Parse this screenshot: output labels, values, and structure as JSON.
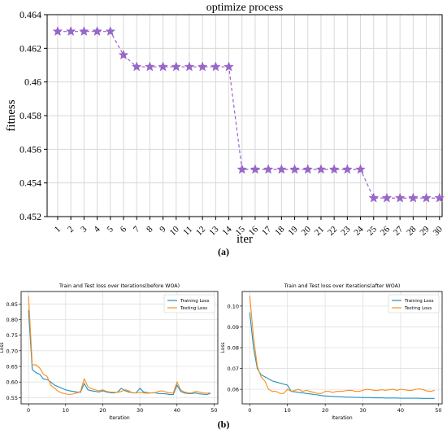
{
  "panel_labels": {
    "a": "(a)",
    "b": "(b)"
  },
  "chart_data": [
    {
      "type": "line",
      "title": "optimize process",
      "xlabel": "iter",
      "ylabel": "fitness",
      "x": [
        1,
        2,
        3,
        4,
        5,
        6,
        7,
        8,
        9,
        10,
        11,
        12,
        13,
        14,
        15,
        16,
        17,
        18,
        19,
        20,
        21,
        22,
        23,
        24,
        25,
        26,
        27,
        28,
        29,
        30
      ],
      "series": [
        {
          "values": [
            0.463,
            0.463,
            0.463,
            0.463,
            0.463,
            0.4616,
            0.4609,
            0.4609,
            0.4609,
            0.4609,
            0.4609,
            0.4609,
            0.4609,
            0.4609,
            0.4548,
            0.4548,
            0.4548,
            0.4548,
            0.4548,
            0.4548,
            0.4548,
            0.4548,
            0.4548,
            0.4548,
            0.4531,
            0.4531,
            0.4531,
            0.4531,
            0.4531,
            0.4531
          ],
          "color": "#9966cc",
          "marker": "star",
          "line_style": "dashed"
        }
      ],
      "ylim": [
        0.452,
        0.464
      ],
      "yticks": [
        0.452,
        0.454,
        0.456,
        0.458,
        0.46,
        0.462,
        0.464
      ],
      "ytick_labels": [
        "0.452",
        "0.454",
        "0.456",
        "0.458",
        "0.46",
        "0.462",
        "0.464"
      ],
      "xticks": [
        1,
        2,
        3,
        4,
        5,
        6,
        7,
        8,
        9,
        10,
        11,
        12,
        13,
        14,
        15,
        16,
        17,
        18,
        19,
        20,
        21,
        22,
        23,
        24,
        25,
        26,
        27,
        28,
        29,
        30
      ],
      "grid": true
    },
    {
      "type": "line",
      "title": "Train and Test loss over Iterations(before WOA)",
      "xlabel": "Iteration",
      "ylabel": "Loss",
      "xlim": [
        -2,
        51
      ],
      "ylim": [
        0.53,
        0.89
      ],
      "xticks": [
        0,
        10,
        20,
        30,
        40,
        50
      ],
      "yticks": [
        0.55,
        0.6,
        0.65,
        0.7,
        0.75,
        0.8,
        0.85
      ],
      "ytick_labels": [
        "0.55",
        "0.60",
        "0.65",
        "0.70",
        "0.75",
        "0.80",
        "0.85"
      ],
      "legend_position": "top-right",
      "grid": true,
      "x": [
        0,
        1,
        2,
        3,
        4,
        5,
        6,
        7,
        8,
        9,
        10,
        11,
        12,
        13,
        14,
        15,
        16,
        17,
        18,
        19,
        20,
        21,
        22,
        23,
        24,
        25,
        26,
        27,
        28,
        29,
        30,
        31,
        32,
        33,
        34,
        35,
        36,
        37,
        38,
        39,
        40,
        41,
        42,
        43,
        44,
        45,
        46,
        47,
        48,
        49
      ],
      "series": [
        {
          "name": "Training Loss",
          "color": "#1f8fbf",
          "values": [
            0.83,
            0.64,
            0.63,
            0.625,
            0.61,
            0.608,
            0.6,
            0.59,
            0.585,
            0.58,
            0.575,
            0.572,
            0.57,
            0.568,
            0.567,
            0.595,
            0.575,
            0.572,
            0.57,
            0.568,
            0.572,
            0.568,
            0.566,
            0.565,
            0.568,
            0.58,
            0.572,
            0.568,
            0.566,
            0.565,
            0.58,
            0.568,
            0.566,
            0.565,
            0.566,
            0.563,
            0.563,
            0.562,
            0.56,
            0.56,
            0.59,
            0.57,
            0.565,
            0.563,
            0.563,
            0.565,
            0.562,
            0.561,
            0.56,
            0.563
          ]
        },
        {
          "name": "Testing Loss",
          "color": "#ff8c1a",
          "values": [
            0.875,
            0.655,
            0.655,
            0.645,
            0.625,
            0.618,
            0.59,
            0.58,
            0.57,
            0.565,
            0.562,
            0.56,
            0.562,
            0.565,
            0.57,
            0.61,
            0.585,
            0.578,
            0.575,
            0.572,
            0.575,
            0.57,
            0.568,
            0.567,
            0.567,
            0.57,
            0.575,
            0.572,
            0.565,
            0.565,
            0.567,
            0.565,
            0.564,
            0.565,
            0.565,
            0.57,
            0.572,
            0.568,
            0.565,
            0.565,
            0.6,
            0.575,
            0.568,
            0.565,
            0.565,
            0.57,
            0.568,
            0.565,
            0.564,
            0.565
          ]
        }
      ]
    },
    {
      "type": "line",
      "title": "Train and Test loss over Iterations(after WOA)",
      "xlabel": "Iteration",
      "ylabel": "Loss",
      "xlim": [
        -2,
        51
      ],
      "ylim": [
        0.053,
        0.107
      ],
      "xticks": [
        0,
        10,
        20,
        30,
        40,
        50
      ],
      "yticks": [
        0.06,
        0.07,
        0.08,
        0.09,
        0.1
      ],
      "ytick_labels": [
        "0.06",
        "0.07",
        "0.08",
        "0.09",
        "0.10"
      ],
      "legend_position": "top-right",
      "grid": true,
      "x": [
        0,
        1,
        2,
        3,
        4,
        5,
        6,
        7,
        8,
        9,
        10,
        11,
        12,
        13,
        14,
        15,
        16,
        17,
        18,
        19,
        20,
        21,
        22,
        23,
        24,
        25,
        26,
        27,
        28,
        29,
        30,
        31,
        32,
        33,
        34,
        35,
        36,
        37,
        38,
        39,
        40,
        41,
        42,
        43,
        44,
        45,
        46,
        47,
        48,
        49
      ],
      "series": [
        {
          "name": "Training Loss",
          "color": "#1f8fbf",
          "values": [
            0.097,
            0.08,
            0.07,
            0.067,
            0.066,
            0.065,
            0.064,
            0.0635,
            0.063,
            0.0625,
            0.062,
            0.059,
            0.0588,
            0.0585,
            0.0583,
            0.058,
            0.0578,
            0.0575,
            0.0573,
            0.057,
            0.0568,
            0.0567,
            0.0566,
            0.0565,
            0.0564,
            0.0563,
            0.0562,
            0.0562,
            0.0561,
            0.0561,
            0.056,
            0.056,
            0.056,
            0.0559,
            0.0559,
            0.0559,
            0.0558,
            0.0558,
            0.0558,
            0.0558,
            0.0557,
            0.0557,
            0.0557,
            0.0557,
            0.0557,
            0.0557,
            0.0556,
            0.0556,
            0.0556,
            0.0556
          ]
        },
        {
          "name": "Testing Loss",
          "color": "#ff8c1a",
          "values": [
            0.105,
            0.085,
            0.071,
            0.066,
            0.064,
            0.06,
            0.059,
            0.059,
            0.058,
            0.058,
            0.06,
            0.059,
            0.0595,
            0.06,
            0.059,
            0.0595,
            0.059,
            0.0585,
            0.058,
            0.058,
            0.059,
            0.059,
            0.0585,
            0.059,
            0.059,
            0.0592,
            0.0595,
            0.0595,
            0.059,
            0.059,
            0.0595,
            0.06,
            0.0598,
            0.0595,
            0.0595,
            0.0598,
            0.0595,
            0.0598,
            0.06,
            0.0595,
            0.06,
            0.0598,
            0.0595,
            0.0595,
            0.06,
            0.0602,
            0.0598,
            0.0592,
            0.059,
            0.0595
          ]
        }
      ]
    }
  ]
}
